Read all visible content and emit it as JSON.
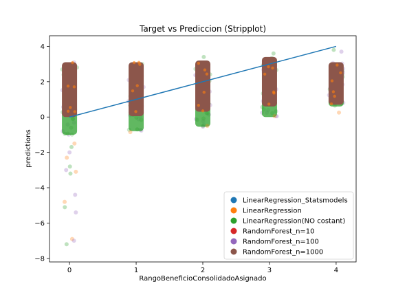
{
  "chart_data": {
    "type": "scatter",
    "title": "Target vs Prediccion (Stripplot)",
    "xlabel": "RangoBeneficioConsolidadoAsignado",
    "ylabel": "predictions",
    "categories": [
      "0",
      "1",
      "2",
      "3",
      "4"
    ],
    "xlim": [
      -0.3,
      4.3
    ],
    "ylim": [
      -8.2,
      4.6
    ],
    "yticks": [
      -8,
      -6,
      -4,
      -2,
      0,
      2,
      4
    ],
    "legend_position": "lower-right",
    "series": [
      {
        "name": "LinearRegression_Statsmodels",
        "color": "#1f77b4"
      },
      {
        "name": "LinearRegression",
        "color": "#ff7f0e"
      },
      {
        "name": "LinearRegression(NO costant)",
        "color": "#2ca02c"
      },
      {
        "name": "RandomForest_n=10",
        "color": "#d62728"
      },
      {
        "name": "RandomForest_n=100",
        "color": "#9467bd"
      },
      {
        "name": "RandomForest_n=1000",
        "color": "#8c564b"
      }
    ],
    "strips": [
      {
        "category": "0",
        "band": [
          0.0,
          3.1
        ],
        "green_band": [
          -1.0,
          3.1
        ],
        "outliers": [
          -1.5,
          -1.7,
          -2.0,
          -2.3,
          -2.8,
          -3.0,
          -3.1,
          -3.2,
          -4.4,
          -4.8,
          -5.1,
          -5.4,
          -6.9,
          -7.2,
          -7.0
        ]
      },
      {
        "category": "1",
        "band": [
          0.05,
          3.1
        ],
        "green_band": [
          -0.8,
          3.1
        ],
        "outliers": [
          -0.85,
          -0.7
        ]
      },
      {
        "category": "2",
        "band": [
          0.3,
          3.2
        ],
        "green_band": [
          -0.55,
          3.2
        ],
        "outliers": [
          -0.5,
          3.4
        ]
      },
      {
        "category": "3",
        "band": [
          0.6,
          3.4
        ],
        "green_band": [
          0.0,
          3.4
        ],
        "outliers": [
          0.05,
          3.6
        ]
      },
      {
        "category": "4",
        "band": [
          0.7,
          3.1
        ],
        "green_band": [
          0.6,
          3.1
        ],
        "outliers": [
          0.25,
          3.8,
          3.7
        ]
      }
    ],
    "reference_line": {
      "x": [
        0,
        4
      ],
      "y": [
        0,
        4
      ],
      "color": "#1f77b4"
    }
  }
}
